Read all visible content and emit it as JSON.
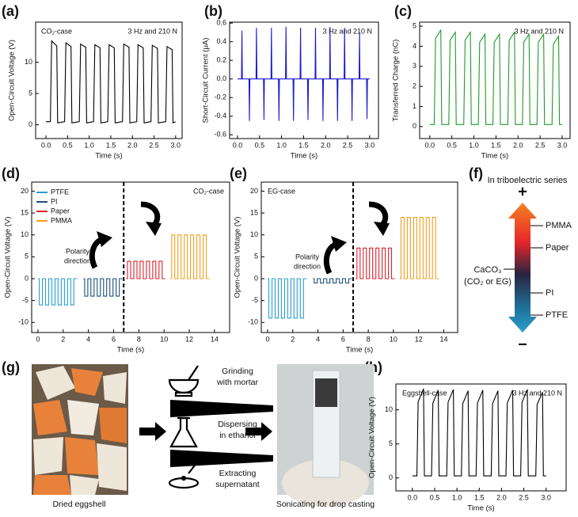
{
  "panel_labels": [
    "(a)",
    "(b)",
    "(c)",
    "(d)",
    "(e)",
    "(f)",
    "(g)",
    "(h)"
  ],
  "chart_data": [
    {
      "type": "line",
      "xlabel": "Time (s)",
      "ylabel": "Open-Circuit Voltage (V)",
      "annotations": [
        "CO₂-case",
        "3 Hz and 210 N"
      ],
      "color": "#000000",
      "xlim": [
        -0.24,
        3.15
      ],
      "ylim": [
        -2.2,
        16.4
      ],
      "xticks": [
        {
          "value": 0,
          "label": "0.0"
        },
        {
          "value": 0.5,
          "label": "0.5"
        },
        {
          "value": 1,
          "label": "1.0"
        },
        {
          "value": 1.5,
          "label": "1.5"
        },
        {
          "value": 2,
          "label": "2.0"
        },
        {
          "value": 2.5,
          "label": "2.5"
        },
        {
          "value": 3,
          "label": "3.0"
        }
      ],
      "yticks": [
        0,
        5,
        10
      ],
      "x": [
        0.0,
        0.1,
        0.13,
        0.25,
        0.27,
        0.43,
        0.46,
        0.58,
        0.6,
        0.77,
        0.8,
        0.92,
        0.94,
        1.1,
        1.13,
        1.25,
        1.27,
        1.43,
        1.46,
        1.58,
        1.6,
        1.77,
        1.8,
        1.92,
        1.94,
        2.1,
        2.13,
        2.25,
        2.27,
        2.43,
        2.46,
        2.58,
        2.6,
        2.77,
        2.8,
        2.92,
        2.94,
        3.0
      ],
      "values": [
        0.5,
        0.5,
        13.4,
        12.6,
        0.3,
        0.5,
        13.1,
        12.5,
        0.3,
        0.5,
        12.9,
        12.4,
        0.3,
        0.5,
        12.8,
        12.3,
        0.3,
        0.5,
        12.8,
        12.3,
        0.3,
        0.5,
        12.9,
        12.4,
        0.3,
        0.5,
        12.8,
        12.3,
        0.3,
        0.5,
        12.7,
        12.2,
        0.3,
        0.5,
        12.5,
        12.0,
        0.3,
        0.5
      ]
    },
    {
      "type": "line",
      "xlabel": "Time (s)",
      "ylabel": "Short-Circuit Current (μA)",
      "annotations": [
        "3 Hz and 210 N"
      ],
      "color": "#1a1ad0",
      "xlim": [
        -0.18,
        3.2
      ],
      "ylim": [
        -0.64,
        0.61
      ],
      "xticks": [
        {
          "value": 0,
          "label": "0.0"
        },
        {
          "value": 0.5,
          "label": "0.5"
        },
        {
          "value": 1,
          "label": "1.0"
        },
        {
          "value": 1.5,
          "label": "1.5"
        },
        {
          "value": 2,
          "label": "2.0"
        },
        {
          "value": 2.5,
          "label": "2.5"
        },
        {
          "value": 3,
          "label": "3.0"
        }
      ],
      "yticks": [
        -0.6,
        -0.4,
        -0.2,
        {
          "value": 0,
          "label": "0.0"
        },
        0.2,
        0.4,
        0.6
      ],
      "x": [
        0.0,
        0.09,
        0.1,
        0.11,
        0.26,
        0.27,
        0.28,
        0.42,
        0.43,
        0.44,
        0.59,
        0.6,
        0.61,
        0.76,
        0.77,
        0.78,
        0.93,
        0.94,
        0.95,
        1.09,
        1.1,
        1.11,
        1.26,
        1.27,
        1.28,
        1.42,
        1.43,
        1.44,
        1.59,
        1.6,
        1.61,
        1.76,
        1.77,
        1.78,
        1.93,
        1.94,
        1.95,
        2.09,
        2.1,
        2.11,
        2.26,
        2.27,
        2.28,
        2.42,
        2.43,
        2.44,
        2.59,
        2.6,
        2.61,
        2.76,
        2.77,
        2.78,
        2.93,
        2.94,
        2.95,
        3.0
      ],
      "values": [
        0,
        0,
        0.52,
        0,
        0,
        -0.45,
        0,
        0,
        0.55,
        0,
        0,
        -0.44,
        0,
        0,
        0.55,
        0,
        0,
        -0.45,
        0,
        0,
        0.56,
        0,
        0,
        -0.45,
        0,
        0,
        0.55,
        0,
        0,
        -0.44,
        0,
        0,
        0.55,
        0,
        0,
        -0.45,
        0,
        0,
        0.56,
        0,
        0,
        -0.45,
        0,
        0,
        0.55,
        0,
        0,
        -0.45,
        0,
        0,
        0.5,
        0,
        0,
        -0.43,
        0,
        0
      ]
    },
    {
      "type": "line",
      "xlabel": "Time (s)",
      "ylabel": "Transferred Charge (nC)",
      "annotations": [
        "3 Hz and 210 N"
      ],
      "color": "#1f9a2a",
      "xlim": [
        -0.23,
        3.18
      ],
      "ylim": [
        -0.6,
        5.2
      ],
      "xticks": [
        {
          "value": 0,
          "label": "0.0"
        },
        {
          "value": 0.5,
          "label": "0.5"
        },
        {
          "value": 1,
          "label": "1.0"
        },
        {
          "value": 1.5,
          "label": "1.5"
        },
        {
          "value": 2,
          "label": "2.0"
        },
        {
          "value": 2.5,
          "label": "2.5"
        },
        {
          "value": 3,
          "label": "3.0"
        }
      ],
      "yticks": [
        0,
        1,
        2,
        3,
        4,
        5
      ],
      "x": [
        0.0,
        0.1,
        0.13,
        0.25,
        0.27,
        0.43,
        0.46,
        0.58,
        0.6,
        0.77,
        0.8,
        0.92,
        0.94,
        1.1,
        1.13,
        1.25,
        1.27,
        1.43,
        1.46,
        1.58,
        1.6,
        1.77,
        1.8,
        1.92,
        1.94,
        2.1,
        2.13,
        2.25,
        2.27,
        2.43,
        2.46,
        2.58,
        2.6,
        2.77,
        2.8,
        2.92,
        2.94,
        3.0
      ],
      "values": [
        0.1,
        0.1,
        4.4,
        4.8,
        0.1,
        0.1,
        4.3,
        4.7,
        0.1,
        0.1,
        4.3,
        4.7,
        0.1,
        0.1,
        4.2,
        4.6,
        0.1,
        0.1,
        4.2,
        4.6,
        0.1,
        0.1,
        4.3,
        4.7,
        0.1,
        0.1,
        4.2,
        4.6,
        0.1,
        0.1,
        4.2,
        4.6,
        0.1,
        0.1,
        4.1,
        4.5,
        0.1,
        0.1
      ]
    },
    {
      "type": "line",
      "xlabel": "Time (s)",
      "ylabel": "Open-Circuit Voltage (V)",
      "annotations": [
        "CO₂-case",
        "Polarity",
        "direction"
      ],
      "divider_x": 6.8,
      "legend": "upper left",
      "xlim": [
        -0.5,
        15.2
      ],
      "ylim": [
        -12.3,
        22.06
      ],
      "xticks": [
        0,
        2,
        4,
        6,
        8,
        10,
        12,
        14
      ],
      "yticks": [
        -10,
        -5,
        0,
        5,
        10,
        15,
        20
      ],
      "series": [
        {
          "name": "PTFE",
          "color": "#2b9fcf",
          "x": [
            0,
            0.1,
            0.1,
            0.35,
            0.35,
            0.6,
            0.6,
            0.85,
            0.85,
            1.1,
            1.1,
            1.35,
            1.35,
            1.6,
            1.6,
            1.85,
            1.85,
            2.1,
            2.1,
            2.35,
            2.35,
            2.6,
            2.6,
            2.85,
            2.85,
            3.1
          ],
          "values": [
            0,
            0,
            -6,
            -6,
            0,
            0,
            -6,
            -6,
            0,
            0,
            -6,
            -6,
            0,
            0,
            -6,
            -6,
            0,
            0,
            -6,
            -6,
            0,
            0,
            -6,
            -6,
            0,
            0
          ]
        },
        {
          "name": "PI",
          "color": "#1b4f7a",
          "x": [
            3.6,
            3.7,
            3.7,
            3.95,
            3.95,
            4.2,
            4.2,
            4.45,
            4.45,
            4.7,
            4.7,
            4.95,
            4.95,
            5.2,
            5.2,
            5.45,
            5.45,
            5.7,
            5.7,
            5.95,
            5.95,
            6.2,
            6.2,
            6.45,
            6.45,
            6.7
          ],
          "values": [
            0,
            0,
            -4,
            -4,
            0,
            0,
            -4,
            -4,
            0,
            0,
            -4,
            -4,
            0,
            0,
            -4,
            -4,
            0,
            0,
            -4,
            -4,
            0,
            0,
            -4,
            -4,
            0,
            0
          ]
        },
        {
          "name": "Paper",
          "color": "#e0202e",
          "x": [
            7.0,
            7.1,
            7.1,
            7.35,
            7.35,
            7.6,
            7.6,
            7.85,
            7.85,
            8.1,
            8.1,
            8.35,
            8.35,
            8.6,
            8.6,
            8.85,
            8.85,
            9.1,
            9.1,
            9.35,
            9.35,
            9.6,
            9.6,
            9.85,
            9.85,
            10.1
          ],
          "values": [
            0,
            0,
            4,
            4,
            0,
            0,
            4,
            4,
            0,
            0,
            4,
            4,
            0,
            0,
            4,
            4,
            0,
            0,
            4,
            4,
            0,
            0,
            4,
            4,
            0,
            0
          ]
        },
        {
          "name": "PMMA",
          "color": "#f0a020",
          "x": [
            10.5,
            10.6,
            10.6,
            10.85,
            10.85,
            11.1,
            11.1,
            11.35,
            11.35,
            11.6,
            11.6,
            11.85,
            11.85,
            12.1,
            12.1,
            12.35,
            12.35,
            12.6,
            12.6,
            12.85,
            12.85,
            13.1,
            13.1,
            13.35,
            13.35,
            13.6
          ],
          "values": [
            0,
            0,
            10,
            10,
            0,
            0,
            10,
            10,
            0,
            0,
            10,
            10,
            0,
            0,
            10,
            10,
            0,
            0,
            10,
            10,
            0,
            0,
            10,
            10,
            0,
            0
          ]
        }
      ]
    },
    {
      "type": "line",
      "xlabel": "Time (s)",
      "ylabel": "Open-Circuit Voltage (V)",
      "annotations": [
        "EG-case",
        "Polarity",
        "direction"
      ],
      "divider_x": 6.8,
      "xlim": [
        -0.5,
        15.1
      ],
      "ylim": [
        -12.3,
        22.06
      ],
      "xticks": [
        0,
        2,
        4,
        6,
        8,
        10,
        12,
        14
      ],
      "yticks": [
        -10,
        -5,
        0,
        5,
        10,
        15,
        20
      ],
      "series": [
        {
          "color": "#2b9fcf",
          "x": [
            0,
            0.1,
            0.1,
            0.35,
            0.35,
            0.6,
            0.6,
            0.85,
            0.85,
            1.1,
            1.1,
            1.35,
            1.35,
            1.6,
            1.6,
            1.85,
            1.85,
            2.1,
            2.1,
            2.35,
            2.35,
            2.6,
            2.6,
            2.85,
            2.85,
            3.1
          ],
          "values": [
            0,
            0,
            -9,
            -9,
            0,
            0,
            -9,
            -9,
            0,
            0,
            -9,
            -9,
            0,
            0,
            -9,
            -9,
            0,
            0,
            -9,
            -9,
            0,
            0,
            -9,
            -9,
            0,
            0
          ]
        },
        {
          "color": "#1b4f7a",
          "x": [
            3.6,
            3.7,
            3.7,
            3.95,
            3.95,
            4.2,
            4.2,
            4.45,
            4.45,
            4.7,
            4.7,
            4.95,
            4.95,
            5.2,
            5.2,
            5.45,
            5.45,
            5.7,
            5.7,
            5.95,
            5.95,
            6.2,
            6.2,
            6.45,
            6.45,
            6.7
          ],
          "values": [
            0,
            0,
            -1,
            -1,
            0,
            0,
            -1,
            -1,
            0,
            0,
            -1,
            -1,
            0,
            0,
            -1,
            -1,
            0,
            0,
            -1,
            -1,
            0,
            0,
            -1,
            -1,
            0,
            0
          ]
        },
        {
          "color": "#e0202e",
          "x": [
            7.0,
            7.1,
            7.1,
            7.35,
            7.35,
            7.6,
            7.6,
            7.85,
            7.85,
            8.1,
            8.1,
            8.35,
            8.35,
            8.6,
            8.6,
            8.85,
            8.85,
            9.1,
            9.1,
            9.35,
            9.35,
            9.6,
            9.6,
            9.85,
            9.85,
            10.1
          ],
          "values": [
            0,
            0,
            7,
            7,
            0,
            0,
            7,
            7,
            0,
            0,
            7,
            7,
            0,
            0,
            7,
            7,
            0,
            0,
            7,
            7,
            0,
            0,
            7,
            7,
            0,
            0
          ]
        },
        {
          "color": "#f0a020",
          "x": [
            10.5,
            10.6,
            10.6,
            10.85,
            10.85,
            11.1,
            11.1,
            11.35,
            11.35,
            11.6,
            11.6,
            11.85,
            11.85,
            12.1,
            12.1,
            12.35,
            12.35,
            12.6,
            12.6,
            12.85,
            12.85,
            13.1,
            13.1,
            13.35,
            13.35,
            13.6
          ],
          "values": [
            0,
            0,
            14,
            14,
            0,
            0,
            14,
            14,
            0,
            0,
            14,
            14,
            0,
            0,
            14,
            14,
            0,
            0,
            14,
            14,
            0,
            0,
            14,
            14,
            0,
            0
          ]
        }
      ]
    },
    {
      "type": "line",
      "xlabel": "Time (s)",
      "ylabel": "Open-Circuit Voltage (V)",
      "annotations": [
        "Eggshell-case",
        "3 Hz and 210 N"
      ],
      "color": "#000000",
      "xlim": [
        -0.37,
        3.45
      ],
      "ylim": [
        -1.9,
        13.8
      ],
      "xticks": [
        {
          "value": 0,
          "label": "0.0"
        },
        {
          "value": 0.5,
          "label": "0.5"
        },
        {
          "value": 1,
          "label": "1.0"
        },
        {
          "value": 1.5,
          "label": "1.5"
        },
        {
          "value": 2,
          "label": "2.0"
        },
        {
          "value": 2.5,
          "label": "2.5"
        },
        {
          "value": 3,
          "label": "3.0"
        }
      ],
      "yticks": [
        0,
        5,
        10
      ],
      "x": [
        0.0,
        0.1,
        0.13,
        0.25,
        0.27,
        0.43,
        0.46,
        0.58,
        0.6,
        0.77,
        0.8,
        0.92,
        0.94,
        1.1,
        1.13,
        1.25,
        1.27,
        1.43,
        1.46,
        1.58,
        1.6,
        1.77,
        1.8,
        1.92,
        1.94,
        2.1,
        2.13,
        2.25,
        2.27,
        2.43,
        2.46,
        2.58,
        2.6,
        2.77,
        2.8,
        2.92,
        2.94,
        3.0
      ],
      "values": [
        0.3,
        0.3,
        11.2,
        13.1,
        0.3,
        0.3,
        11.0,
        12.9,
        0.3,
        0.3,
        11.1,
        13.0,
        0.3,
        0.3,
        10.9,
        12.8,
        0.3,
        0.3,
        11.0,
        12.9,
        0.3,
        0.3,
        10.9,
        12.8,
        0.3,
        0.3,
        11.0,
        12.9,
        0.3,
        0.3,
        11.1,
        13.0,
        0.3,
        0.3,
        10.8,
        12.6,
        0.3,
        0.3
      ]
    }
  ],
  "triboelectric": {
    "title": "In triboelectric series",
    "plus": "+",
    "minus": "−",
    "right_labels": [
      "PMMA",
      "Paper",
      "PI",
      "PTFE"
    ],
    "left_label": [
      "CaCO₃",
      "(CO₂ or EG)"
    ]
  },
  "process": {
    "steps": [
      [
        "Grinding",
        "with mortar"
      ],
      [
        "Dispersing",
        "in ethanol"
      ],
      [
        "Extracting",
        "supernatant"
      ]
    ],
    "captions": [
      "Dried eggshell",
      "Sonicating for drop casting"
    ]
  }
}
